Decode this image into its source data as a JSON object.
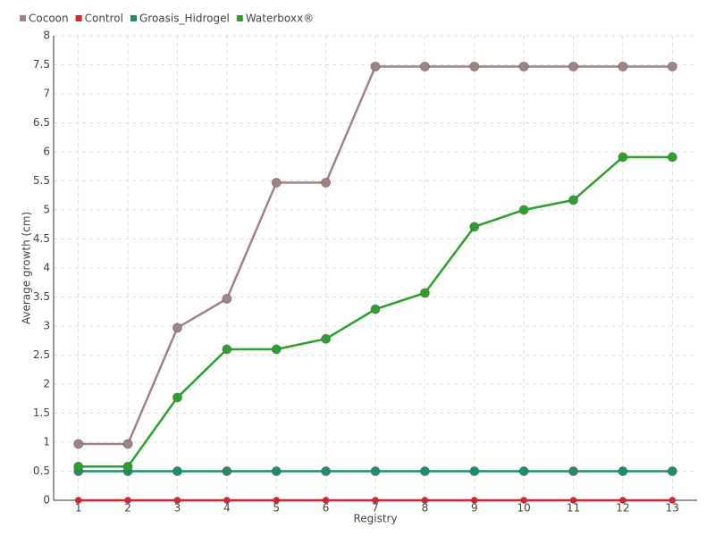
{
  "chart_data": {
    "type": "line",
    "x_label": "Registry",
    "y_label": "Average growth (cm)",
    "categories": [
      "1",
      "2",
      "3",
      "4",
      "5",
      "6",
      "7",
      "8",
      "9",
      "10",
      "11",
      "12",
      "13"
    ],
    "series": [
      {
        "name": "Cocoon",
        "color": "#a08484",
        "values": [
          0.97,
          0.97,
          2.97,
          3.47,
          5.47,
          5.47,
          7.47,
          7.47,
          7.47,
          7.47,
          7.47,
          7.47,
          7.47
        ]
      },
      {
        "name": "Control",
        "color": "#e0202a",
        "values": [
          0,
          0,
          0,
          0,
          0,
          0,
          0,
          0,
          0,
          0,
          0,
          0,
          0
        ]
      },
      {
        "name": "Groasis_Hidrogel",
        "color": "#1f8c74",
        "values": [
          0.5,
          0.5,
          0.5,
          0.5,
          0.5,
          0.5,
          0.5,
          0.5,
          0.5,
          0.5,
          0.5,
          0.5,
          0.5
        ]
      },
      {
        "name": "Waterboxx®",
        "color": "#2ca02c",
        "values": [
          0.58,
          0.58,
          1.77,
          2.6,
          2.6,
          2.78,
          3.29,
          3.57,
          4.71,
          5,
          5.17,
          5.91,
          5.91
        ]
      }
    ],
    "ylim": [
      0,
      8
    ],
    "yticks": [
      0,
      0.5,
      1,
      1.5,
      2,
      2.5,
      3,
      3.5,
      4,
      4.5,
      5,
      5.5,
      6,
      6.5,
      7,
      7.5,
      8
    ],
    "grid": true,
    "legend": "top-left"
  }
}
